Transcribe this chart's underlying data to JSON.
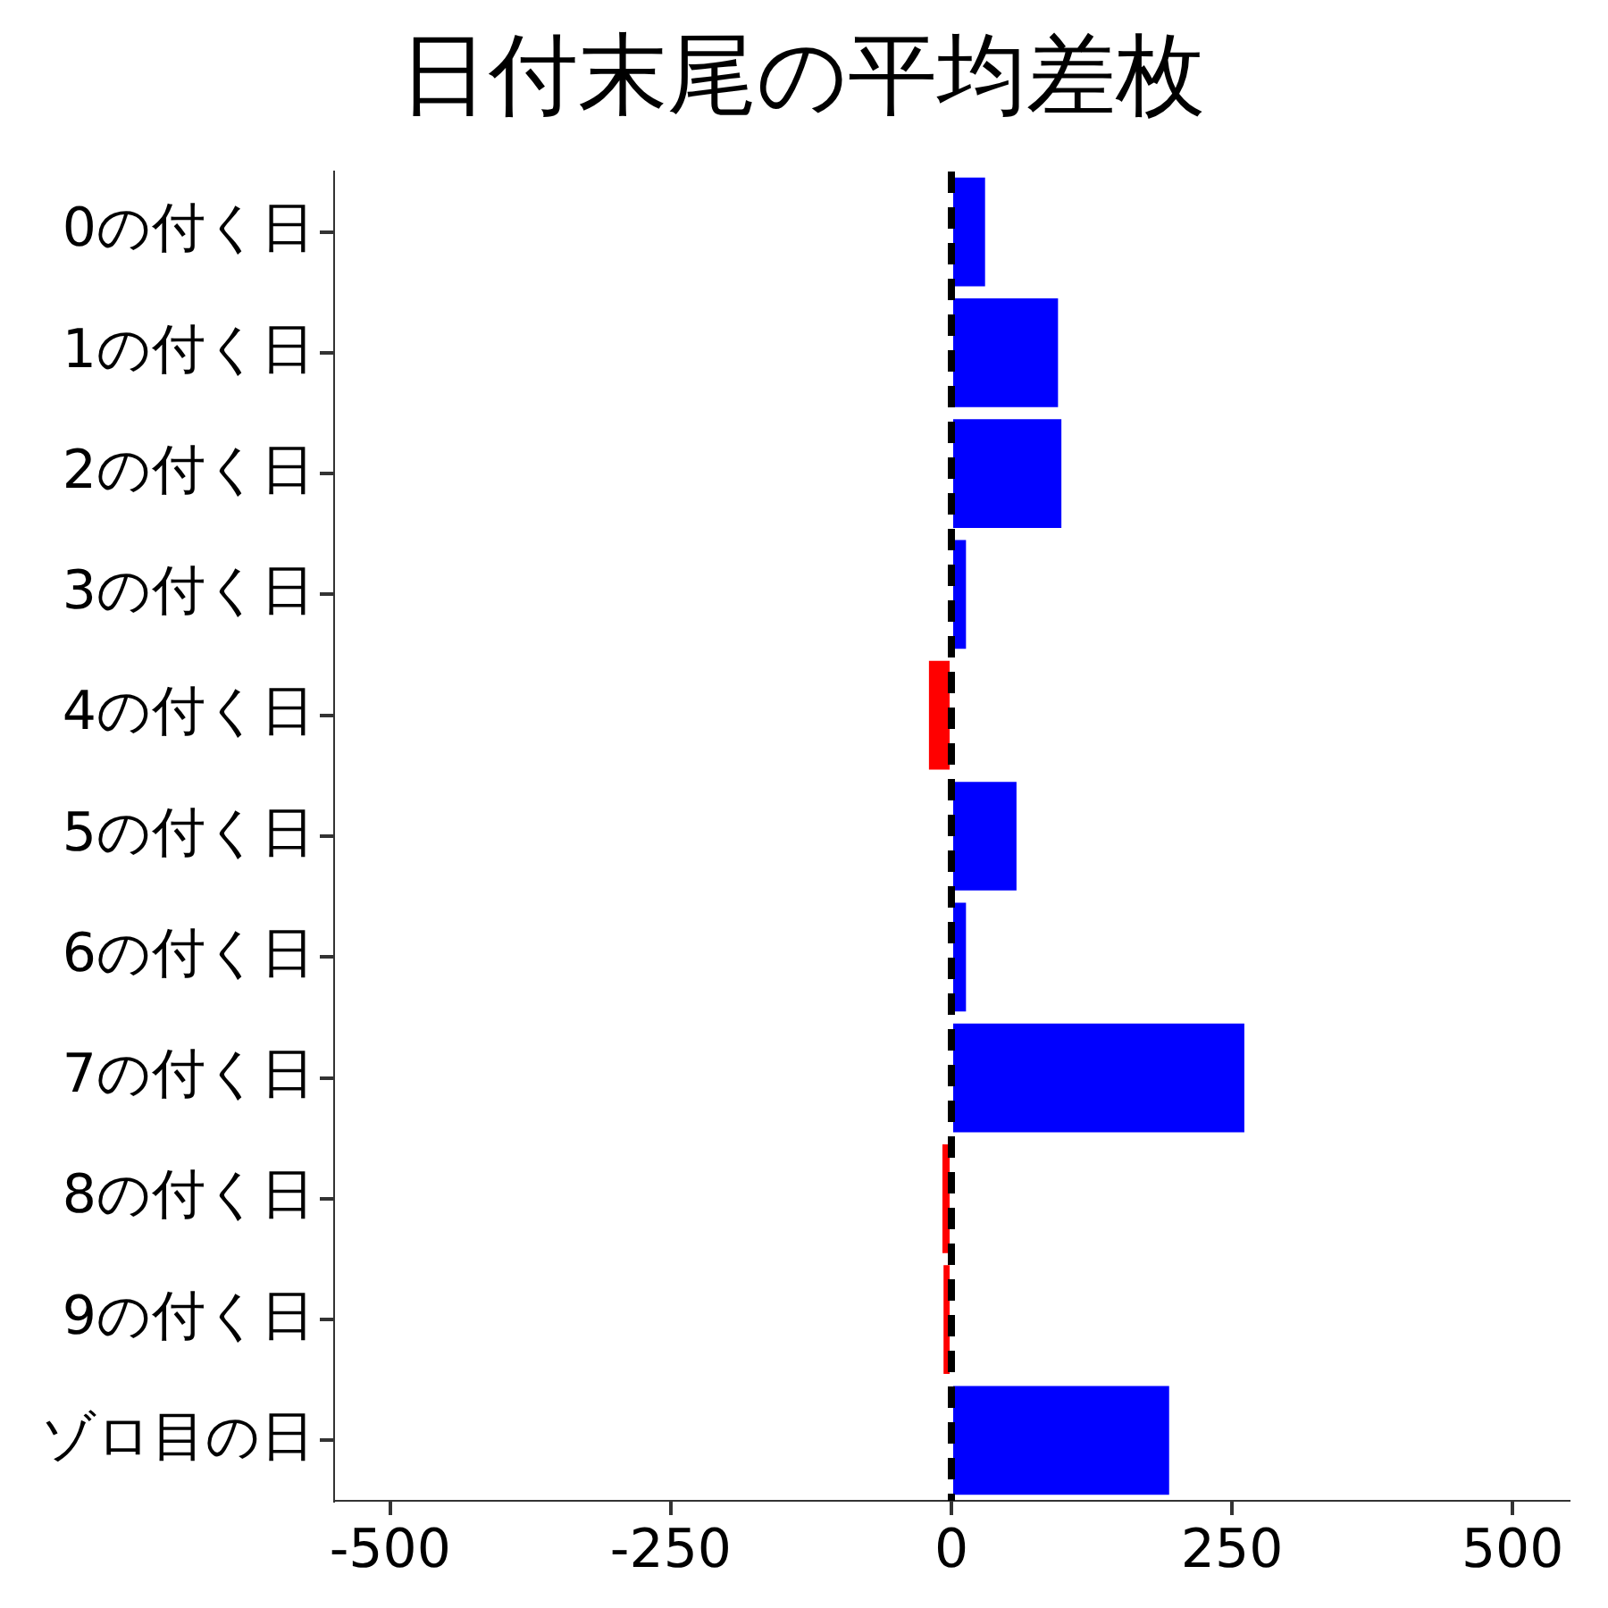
{
  "chart_data": {
    "type": "bar",
    "orientation": "horizontal",
    "title": "日付末尾の平均差枚",
    "categories": [
      "0の付く日",
      "1の付く日",
      "2の付く日",
      "3の付く日",
      "4の付く日",
      "5の付く日",
      "6の付く日",
      "7の付く日",
      "8の付く日",
      "9の付く日",
      "ゾロ目の日"
    ],
    "values": [
      30,
      95,
      98,
      13,
      -20,
      58,
      13,
      261,
      -8,
      -7,
      194
    ],
    "colors": [
      "#0000ff",
      "#0000ff",
      "#0000ff",
      "#0000ff",
      "#ff0000",
      "#0000ff",
      "#0000ff",
      "#0000ff",
      "#ff0000",
      "#ff0000",
      "#0000ff"
    ],
    "xlim": [
      -550,
      550
    ],
    "xticks": [
      -500,
      -250,
      0,
      250,
      500
    ],
    "ref_lines": [
      {
        "axis": "x",
        "value": 0,
        "color": "#000000",
        "line_style": "dashed"
      }
    ],
    "grid": false,
    "legend": false
  }
}
